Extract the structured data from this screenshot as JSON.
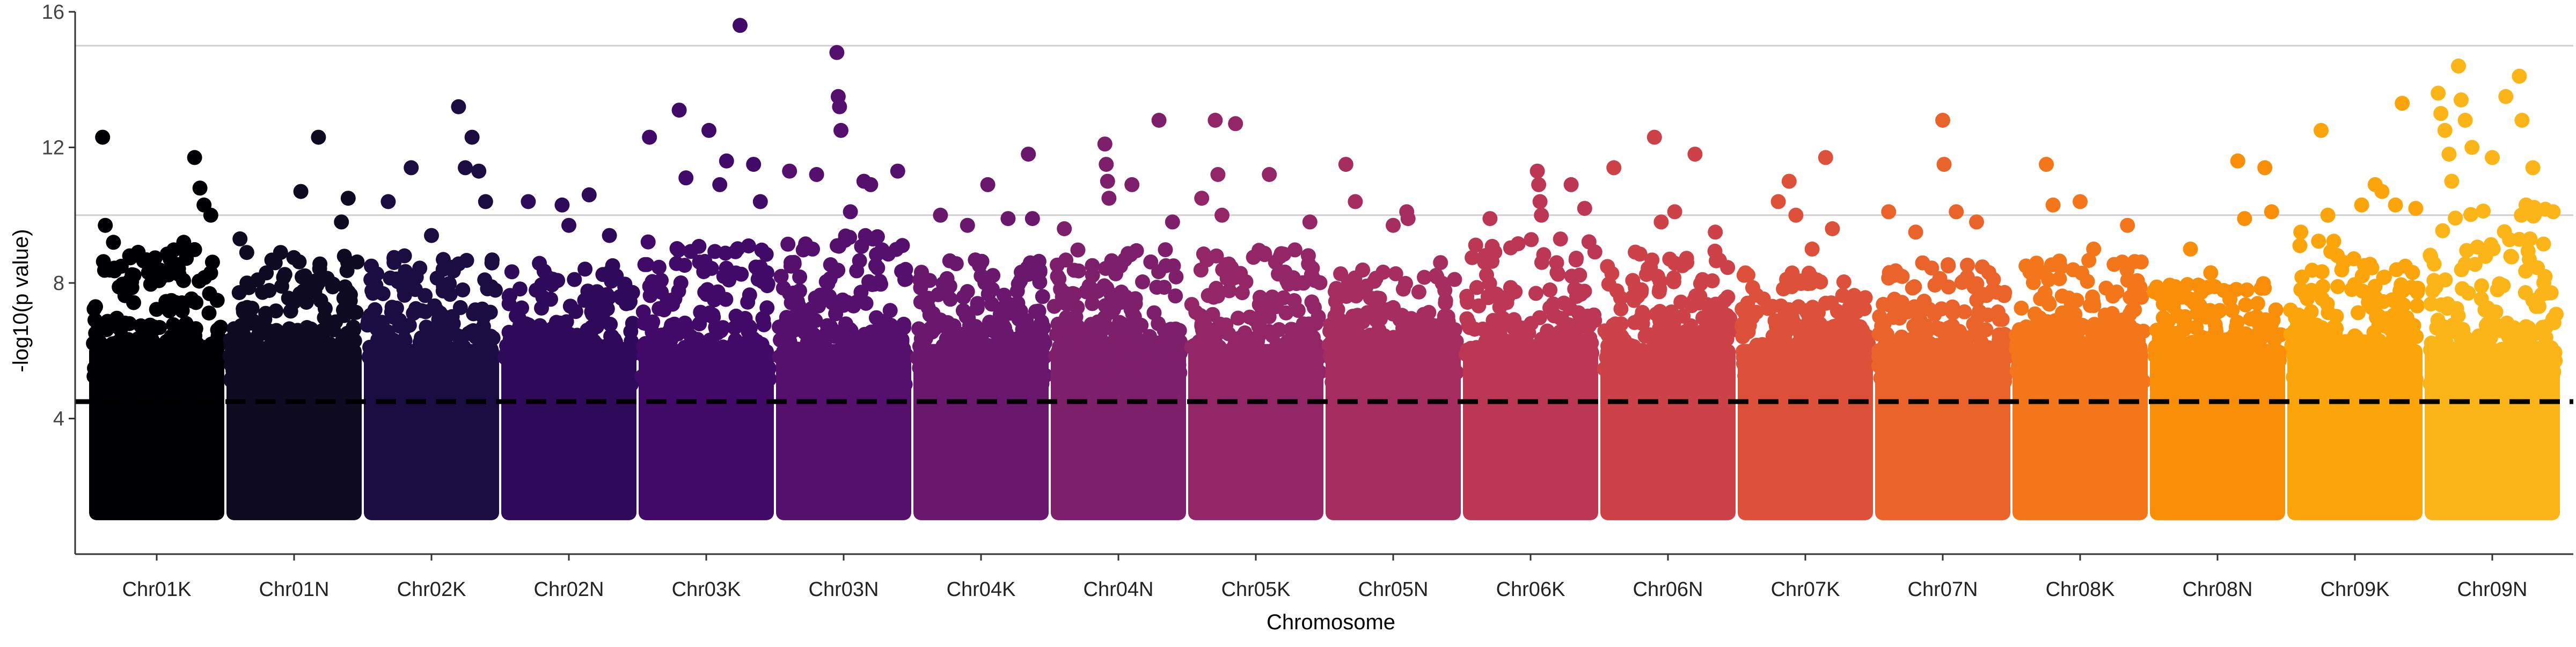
{
  "chart_data": {
    "type": "scatter",
    "subtype": "manhattan",
    "title": "",
    "xlabel": "Chromosome",
    "ylabel": "-log10(p value)",
    "ylim": [
      0,
      16
    ],
    "yticks": [
      4,
      8,
      12,
      16
    ],
    "gridlines_y": [
      10,
      15
    ],
    "threshold": 4.5,
    "threshold_style": "dashed",
    "legend": "none",
    "categories": [
      "Chr01K",
      "Chr01N",
      "Chr02K",
      "Chr02N",
      "Chr03K",
      "Chr03N",
      "Chr04K",
      "Chr04N",
      "Chr05K",
      "Chr05N",
      "Chr06K",
      "Chr06N",
      "Chr07K",
      "Chr07N",
      "Chr08K",
      "Chr08N",
      "Chr09K",
      "Chr09N"
    ],
    "colors": [
      "#000004",
      "#0d0a21",
      "#1b0c41",
      "#2f0a5b",
      "#420a68",
      "#550f6d",
      "#6a176e",
      "#7e1f6c",
      "#932667",
      "#a62d60",
      "#bb3754",
      "#cc4248",
      "#dd513a",
      "#ea632b",
      "#f3771a",
      "#f98e09",
      "#fca50a",
      "#fcb519"
    ],
    "series": [
      {
        "name": "Chr01K",
        "background_top": 9.0,
        "top_points": [
          [
            0.1,
            12.3
          ],
          [
            0.12,
            9.7
          ],
          [
            0.18,
            9.2
          ],
          [
            0.3,
            8.8
          ],
          [
            0.45,
            8.6
          ],
          [
            0.6,
            8.7
          ],
          [
            0.78,
            11.7
          ],
          [
            0.82,
            10.8
          ],
          [
            0.85,
            10.3
          ],
          [
            0.9,
            10.0
          ],
          [
            0.7,
            9.2
          ]
        ]
      },
      {
        "name": "Chr01N",
        "background_top": 8.8,
        "top_points": [
          [
            0.1,
            9.3
          ],
          [
            0.15,
            8.9
          ],
          [
            0.55,
            10.7
          ],
          [
            0.68,
            12.3
          ],
          [
            0.9,
            10.5
          ],
          [
            0.85,
            9.8
          ],
          [
            0.4,
            8.9
          ]
        ]
      },
      {
        "name": "Chr02K",
        "background_top": 8.9,
        "top_points": [
          [
            0.18,
            10.4
          ],
          [
            0.3,
            8.8
          ],
          [
            0.35,
            11.4
          ],
          [
            0.7,
            13.2
          ],
          [
            0.8,
            12.3
          ],
          [
            0.75,
            11.4
          ],
          [
            0.85,
            11.3
          ],
          [
            0.9,
            10.4
          ],
          [
            0.5,
            9.4
          ]
        ]
      },
      {
        "name": "Chr02N",
        "background_top": 8.6,
        "top_points": [
          [
            0.2,
            10.4
          ],
          [
            0.45,
            10.3
          ],
          [
            0.65,
            10.6
          ],
          [
            0.5,
            9.7
          ],
          [
            0.8,
            9.4
          ]
        ]
      },
      {
        "name": "Chr03K",
        "background_top": 9.3,
        "top_points": [
          [
            0.08,
            12.3
          ],
          [
            0.3,
            13.1
          ],
          [
            0.35,
            11.1
          ],
          [
            0.52,
            12.5
          ],
          [
            0.65,
            11.6
          ],
          [
            0.75,
            15.6
          ],
          [
            0.85,
            11.5
          ],
          [
            0.9,
            10.4
          ],
          [
            0.6,
            10.9
          ]
        ]
      },
      {
        "name": "Chr03N",
        "background_top": 9.4,
        "top_points": [
          [
            0.1,
            11.3
          ],
          [
            0.3,
            11.2
          ],
          [
            0.45,
            14.8
          ],
          [
            0.46,
            13.5
          ],
          [
            0.47,
            13.2
          ],
          [
            0.48,
            12.5
          ],
          [
            0.65,
            11.0
          ],
          [
            0.7,
            10.9
          ],
          [
            0.9,
            11.3
          ],
          [
            0.55,
            10.1
          ]
        ]
      },
      {
        "name": "Chr04K",
        "background_top": 8.8,
        "top_points": [
          [
            0.2,
            10.0
          ],
          [
            0.4,
            9.7
          ],
          [
            0.55,
            10.9
          ],
          [
            0.85,
            11.8
          ],
          [
            0.7,
            9.9
          ],
          [
            0.88,
            9.9
          ]
        ]
      },
      {
        "name": "Chr04N",
        "background_top": 9.0,
        "top_points": [
          [
            0.1,
            9.6
          ],
          [
            0.4,
            12.1
          ],
          [
            0.41,
            11.5
          ],
          [
            0.42,
            11.0
          ],
          [
            0.43,
            10.5
          ],
          [
            0.6,
            10.9
          ],
          [
            0.8,
            12.8
          ],
          [
            0.9,
            9.8
          ]
        ]
      },
      {
        "name": "Chr05K",
        "background_top": 9.0,
        "top_points": [
          [
            0.1,
            10.5
          ],
          [
            0.2,
            12.8
          ],
          [
            0.22,
            11.2
          ],
          [
            0.25,
            10.0
          ],
          [
            0.35,
            12.7
          ],
          [
            0.6,
            11.2
          ],
          [
            0.9,
            9.8
          ]
        ]
      },
      {
        "name": "Chr05N",
        "background_top": 8.4,
        "top_points": [
          [
            0.15,
            11.5
          ],
          [
            0.22,
            10.4
          ],
          [
            0.6,
            10.1
          ],
          [
            0.61,
            9.9
          ],
          [
            0.85,
            8.6
          ],
          [
            0.5,
            9.7
          ]
        ]
      },
      {
        "name": "Chr06K",
        "background_top": 9.3,
        "top_points": [
          [
            0.2,
            9.9
          ],
          [
            0.55,
            11.3
          ],
          [
            0.56,
            10.9
          ],
          [
            0.57,
            10.4
          ],
          [
            0.58,
            10.0
          ],
          [
            0.8,
            10.9
          ],
          [
            0.9,
            10.2
          ]
        ]
      },
      {
        "name": "Chr06N",
        "background_top": 9.0,
        "top_points": [
          [
            0.1,
            11.4
          ],
          [
            0.4,
            12.3
          ],
          [
            0.45,
            9.8
          ],
          [
            0.55,
            10.1
          ],
          [
            0.7,
            11.8
          ],
          [
            0.85,
            9.5
          ]
        ]
      },
      {
        "name": "Chr07K",
        "background_top": 8.3,
        "top_points": [
          [
            0.3,
            10.4
          ],
          [
            0.38,
            11.0
          ],
          [
            0.43,
            10.0
          ],
          [
            0.65,
            11.7
          ],
          [
            0.7,
            9.6
          ],
          [
            0.55,
            9.0
          ]
        ]
      },
      {
        "name": "Chr07N",
        "background_top": 8.6,
        "top_points": [
          [
            0.1,
            10.1
          ],
          [
            0.5,
            12.8
          ],
          [
            0.51,
            11.5
          ],
          [
            0.6,
            10.1
          ],
          [
            0.75,
            9.8
          ],
          [
            0.3,
            9.5
          ]
        ]
      },
      {
        "name": "Chr08K",
        "background_top": 8.7,
        "top_points": [
          [
            0.1,
            8.5
          ],
          [
            0.25,
            11.5
          ],
          [
            0.3,
            10.3
          ],
          [
            0.5,
            10.4
          ],
          [
            0.6,
            9.0
          ],
          [
            0.85,
            9.7
          ]
        ]
      },
      {
        "name": "Chr08N",
        "background_top": 8.0,
        "top_points": [
          [
            0.3,
            9.0
          ],
          [
            0.45,
            8.3
          ],
          [
            0.65,
            11.6
          ],
          [
            0.7,
            9.9
          ],
          [
            0.85,
            11.4
          ],
          [
            0.9,
            10.1
          ]
        ]
      },
      {
        "name": "Chr09K",
        "background_top": 9.3,
        "top_points": [
          [
            0.1,
            9.5
          ],
          [
            0.25,
            12.5
          ],
          [
            0.3,
            10.0
          ],
          [
            0.55,
            10.3
          ],
          [
            0.65,
            10.9
          ],
          [
            0.7,
            10.7
          ],
          [
            0.85,
            13.3
          ],
          [
            0.8,
            10.3
          ],
          [
            0.95,
            10.2
          ]
        ]
      },
      {
        "name": "Chr09N",
        "background_top": 10.3,
        "top_points": [
          [
            0.1,
            13.6
          ],
          [
            0.12,
            13.0
          ],
          [
            0.15,
            12.5
          ],
          [
            0.18,
            11.8
          ],
          [
            0.2,
            11.0
          ],
          [
            0.25,
            14.4
          ],
          [
            0.27,
            13.4
          ],
          [
            0.3,
            12.8
          ],
          [
            0.35,
            12.0
          ],
          [
            0.5,
            11.7
          ],
          [
            0.6,
            13.5
          ],
          [
            0.7,
            14.1
          ],
          [
            0.72,
            12.8
          ],
          [
            0.75,
            10.3
          ],
          [
            0.8,
            11.4
          ],
          [
            0.95,
            10.1
          ]
        ]
      }
    ]
  }
}
